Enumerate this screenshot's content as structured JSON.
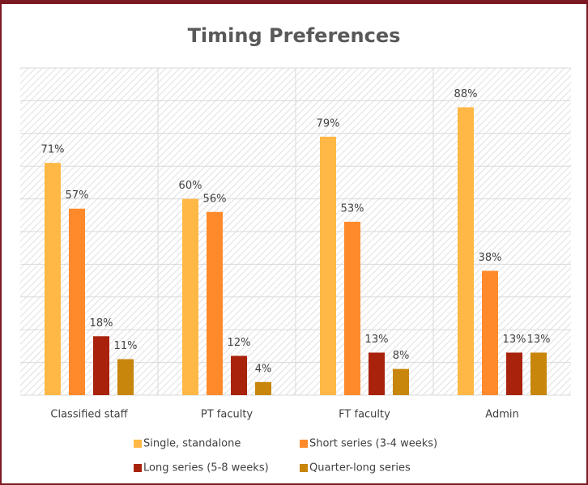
{
  "chart_data": {
    "type": "bar",
    "title": "Timing Preferences",
    "categories": [
      "Classified staff",
      "PT faculty",
      "FT faculty",
      "Admin"
    ],
    "series": [
      {
        "name": "Single, standalone",
        "color": "#ffb845",
        "values": [
          71,
          60,
          79,
          88
        ],
        "value_labels": [
          "71%",
          "60%",
          "79%",
          "88%"
        ]
      },
      {
        "name": "Short series (3-4 weeks)",
        "color": "#ff8a2b",
        "values": [
          57,
          56,
          53,
          38
        ],
        "value_labels": [
          "57%",
          "56%",
          "53%",
          "38%"
        ]
      },
      {
        "name": "Long series (5-8 weeks)",
        "color": "#a8220c",
        "values": [
          18,
          12,
          13,
          13
        ],
        "value_labels": [
          "18%",
          "12%",
          "13%",
          "13%"
        ]
      },
      {
        "name": "Quarter-long series",
        "color": "#c8860d",
        "values": [
          11,
          4,
          8,
          13
        ],
        "value_labels": [
          "11%",
          "4%",
          "8%",
          "13%"
        ]
      }
    ],
    "ylim": [
      0,
      100
    ],
    "yticks": [
      0,
      10,
      20,
      30,
      40,
      50,
      60,
      70,
      80,
      90,
      100
    ],
    "grid": true,
    "legend": "bottom"
  }
}
